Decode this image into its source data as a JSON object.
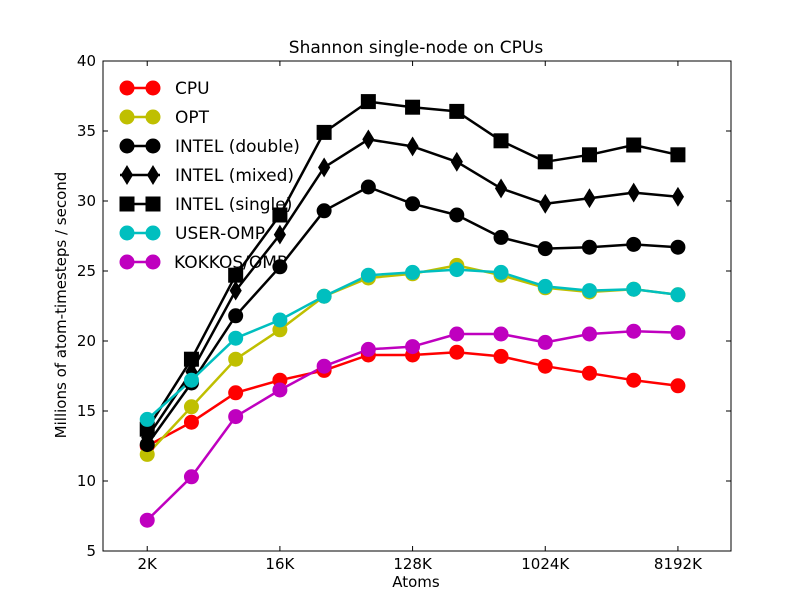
{
  "chart_data": {
    "type": "line",
    "title": "Shannon single-node on CPUs",
    "xlabel": "Atoms",
    "ylabel": "Millions of atom-timesteps / second",
    "x": [
      "2K",
      "4K",
      "8K",
      "16K",
      "32K",
      "64K",
      "128K",
      "256K",
      "512K",
      "1024K",
      "2048K",
      "4096K",
      "8192K"
    ],
    "x_tick_labels": [
      "2K",
      "16K",
      "128K",
      "1024K",
      "8192K"
    ],
    "x_tick_indices": [
      0,
      3,
      6,
      9,
      12
    ],
    "xlim": [
      -1,
      13.2
    ],
    "ylim": [
      5,
      40
    ],
    "y_ticks": [
      5,
      10,
      15,
      20,
      25,
      30,
      35,
      40
    ],
    "grid": false,
    "legend_position": "top-left",
    "series": [
      {
        "name": "CPU",
        "color": "#ff0000",
        "marker": "circle",
        "values": [
          12.5,
          14.2,
          16.3,
          17.2,
          17.9,
          19.0,
          19.0,
          19.2,
          18.9,
          18.2,
          17.7,
          17.2,
          16.8
        ]
      },
      {
        "name": "OPT",
        "color": "#bfbf00",
        "marker": "circle",
        "values": [
          11.9,
          15.3,
          18.7,
          20.8,
          23.2,
          24.5,
          24.8,
          25.4,
          24.7,
          23.8,
          23.5,
          23.7,
          23.3
        ]
      },
      {
        "name": "INTEL (double)",
        "color": "#000000",
        "marker": "circle",
        "values": [
          12.6,
          17.0,
          21.8,
          25.3,
          29.3,
          31.0,
          29.8,
          29.0,
          27.4,
          26.6,
          26.7,
          26.9,
          26.7
        ]
      },
      {
        "name": "INTEL (mixed)",
        "color": "#000000",
        "marker": "diamond",
        "values": [
          13.1,
          17.8,
          23.6,
          27.6,
          32.4,
          34.4,
          33.9,
          32.8,
          30.9,
          29.8,
          30.2,
          30.6,
          30.3
        ]
      },
      {
        "name": "INTEL (single)",
        "color": "#000000",
        "marker": "square",
        "values": [
          13.7,
          18.7,
          24.7,
          29.0,
          34.9,
          37.1,
          36.7,
          36.4,
          34.3,
          32.8,
          33.3,
          34.0,
          33.3
        ]
      },
      {
        "name": "USER-OMP",
        "color": "#00bfbf",
        "marker": "circle",
        "values": [
          14.4,
          17.2,
          20.2,
          21.5,
          23.2,
          24.7,
          24.9,
          25.1,
          24.9,
          23.9,
          23.6,
          23.7,
          23.3
        ]
      },
      {
        "name": "KOKKOS/OMP",
        "color": "#bf00bf",
        "marker": "circle",
        "values": [
          7.2,
          10.3,
          14.6,
          16.5,
          18.2,
          19.4,
          19.6,
          20.5,
          20.5,
          19.9,
          20.5,
          20.7,
          20.6
        ]
      }
    ]
  }
}
